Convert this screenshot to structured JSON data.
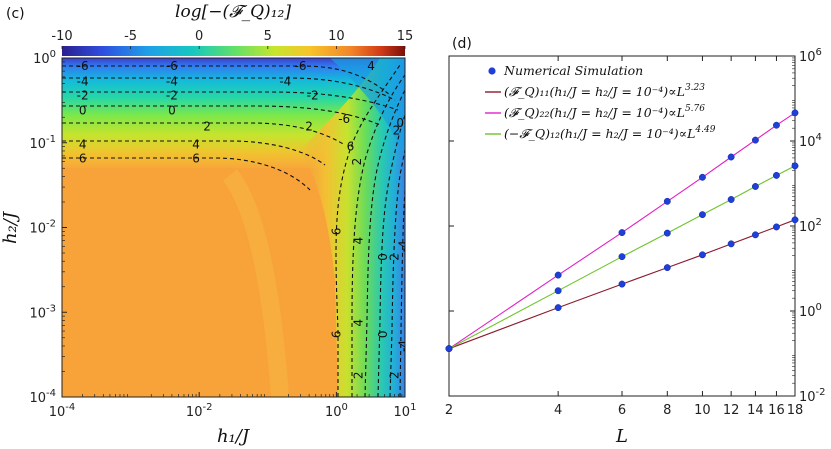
{
  "chart_data": [
    {
      "type": "heatmap",
      "panel_label": "(c)",
      "colorbar_title": "log[−(𝓕_Q)₁₂]",
      "colorbar_ticks": [
        -10,
        -5,
        0,
        5,
        10,
        15
      ],
      "colorbar_range": [
        -10,
        15
      ],
      "xlabel": "h₁/J",
      "ylabel": "h₂/J",
      "x_scale": "log",
      "y_scale": "log",
      "xlim": [
        0.0001,
        10
      ],
      "ylim": [
        0.0001,
        1
      ],
      "x_ticks": [
        {
          "value": 0.0001,
          "mant": "10",
          "exp": "-4"
        },
        {
          "value": 0.01,
          "mant": "10",
          "exp": "-2"
        },
        {
          "value": 1,
          "mant": "10",
          "exp": "0"
        },
        {
          "value": 10,
          "mant": "10",
          "exp": "1"
        }
      ],
      "y_ticks": [
        {
          "value": 1,
          "mant": "10",
          "exp": "0"
        },
        {
          "value": 0.1,
          "mant": "10",
          "exp": "-1"
        },
        {
          "value": 0.01,
          "mant": "10",
          "exp": "-2"
        },
        {
          "value": 0.001,
          "mant": "10",
          "exp": "-3"
        },
        {
          "value": 0.0001,
          "mant": "10",
          "exp": "-4"
        }
      ],
      "contour_labels_top": [
        {
          "text": "-6",
          "h1": 0.0002,
          "h2": 0.8
        },
        {
          "text": "-6",
          "h1": 0.004,
          "h2": 0.8
        },
        {
          "text": "-6",
          "h1": 0.3,
          "h2": 0.8
        },
        {
          "text": "-4",
          "h1": 0.0002,
          "h2": 0.53
        },
        {
          "text": "-4",
          "h1": 0.004,
          "h2": 0.53
        },
        {
          "text": "-4",
          "h1": 0.18,
          "h2": 0.53
        },
        {
          "text": "-2",
          "h1": 0.0002,
          "h2": 0.36
        },
        {
          "text": "-2",
          "h1": 0.004,
          "h2": 0.36
        },
        {
          "text": "-2",
          "h1": 0.45,
          "h2": 0.36
        },
        {
          "text": "0",
          "h1": 0.0002,
          "h2": 0.24
        },
        {
          "text": "0",
          "h1": 0.004,
          "h2": 0.24
        },
        {
          "text": "2",
          "h1": 0.013,
          "h2": 0.155
        },
        {
          "text": "2",
          "h1": 0.4,
          "h2": 0.155
        },
        {
          "text": "4",
          "h1": 0.0002,
          "h2": 0.095
        },
        {
          "text": "4",
          "h1": 0.009,
          "h2": 0.095
        },
        {
          "text": "6",
          "h1": 0.0002,
          "h2": 0.065
        },
        {
          "text": "6",
          "h1": 0.009,
          "h2": 0.065
        },
        {
          "text": "4",
          "h1": 3.2,
          "h2": 0.8
        },
        {
          "text": "-6",
          "h1": 1.3,
          "h2": 0.19
        },
        {
          "text": "2",
          "h1": 7.5,
          "h2": 0.14
        },
        {
          "text": "0",
          "h1": 8.5,
          "h2": 0.17
        },
        {
          "text": "6",
          "h1": 1.6,
          "h2": 0.09
        }
      ],
      "contour_labels_right": [
        {
          "text": "2",
          "h1": 2.0,
          "h2": 0.06
        },
        {
          "text": "6",
          "h1": 1.0,
          "h2": 0.009
        },
        {
          "text": "4",
          "h1": 2.1,
          "h2": 0.007
        },
        {
          "text": "0",
          "h1": 4.8,
          "h2": 0.0045
        },
        {
          "text": "2",
          "h1": 7.0,
          "h2": 0.0045
        },
        {
          "text": "-4",
          "h1": 9.5,
          "h2": 0.006
        },
        {
          "text": "6",
          "h1": 1.0,
          "h2": 0.00055
        },
        {
          "text": "4",
          "h1": 2.1,
          "h2": 0.00075
        },
        {
          "text": "0",
          "h1": 4.8,
          "h2": 0.00055
        },
        {
          "text": "2",
          "h1": 2.1,
          "h2": 0.00018
        },
        {
          "text": "2",
          "h1": 7.0,
          "h2": 0.00018
        },
        {
          "text": "-4",
          "h1": 9.5,
          "h2": 0.0004
        }
      ]
    },
    {
      "type": "line",
      "panel_label": "(d)",
      "xlabel": "L",
      "x_scale": "log",
      "y_scale": "log",
      "xlim": [
        2,
        18
      ],
      "ylim": [
        0.01,
        1000000
      ],
      "x_ticks": [
        2,
        4,
        6,
        8,
        10,
        12,
        14,
        16,
        18
      ],
      "y_ticks": [
        {
          "value": 0.01,
          "mant": "10",
          "exp": "-2"
        },
        {
          "value": 1,
          "mant": "10",
          "exp": "0"
        },
        {
          "value": 100,
          "mant": "10",
          "exp": "2"
        },
        {
          "value": 10000,
          "mant": "10",
          "exp": "4"
        },
        {
          "value": 1000000,
          "mant": "10",
          "exp": "6"
        }
      ],
      "legend_position": "top-left",
      "legend": [
        {
          "kind": "marker",
          "text": "Numerical Simulation",
          "color": "#1f3fd6"
        },
        {
          "kind": "line",
          "base": "(𝓕_Q)₁₁(h₁/J = h₂/J = 10⁻⁴)∝L",
          "sup": "3.23",
          "color": "#8b1a2f"
        },
        {
          "kind": "line",
          "base": "(𝓕_Q)₂₂(h₁/J = h₂/J = 10⁻⁴)∝L",
          "sup": "5.76",
          "color": "#e020c8"
        },
        {
          "kind": "line",
          "base": "(−𝓕_Q)₁₂(h₁/J = h₂/J = 10⁻⁴)∝L",
          "sup": "4.49",
          "color": "#6cc42a"
        }
      ],
      "x": [
        2,
        4,
        6,
        8,
        10,
        12,
        14,
        16,
        18
      ],
      "series": [
        {
          "exponent": 3.23,
          "color": "#8b1a2f",
          "values": [
            0.13,
            1.2,
            4.3,
            10.5,
            21,
            38,
            62,
            95,
            140
          ]
        },
        {
          "exponent": 5.76,
          "color": "#e020c8",
          "values": [
            0.13,
            7.0,
            70,
            380,
            1400,
            4200,
            10500,
            23500,
            46000
          ]
        },
        {
          "exponent": 4.49,
          "color": "#6cc42a",
          "values": [
            0.13,
            3.0,
            19,
            68,
            185,
            420,
            850,
            1550,
            2600
          ]
        }
      ]
    }
  ]
}
